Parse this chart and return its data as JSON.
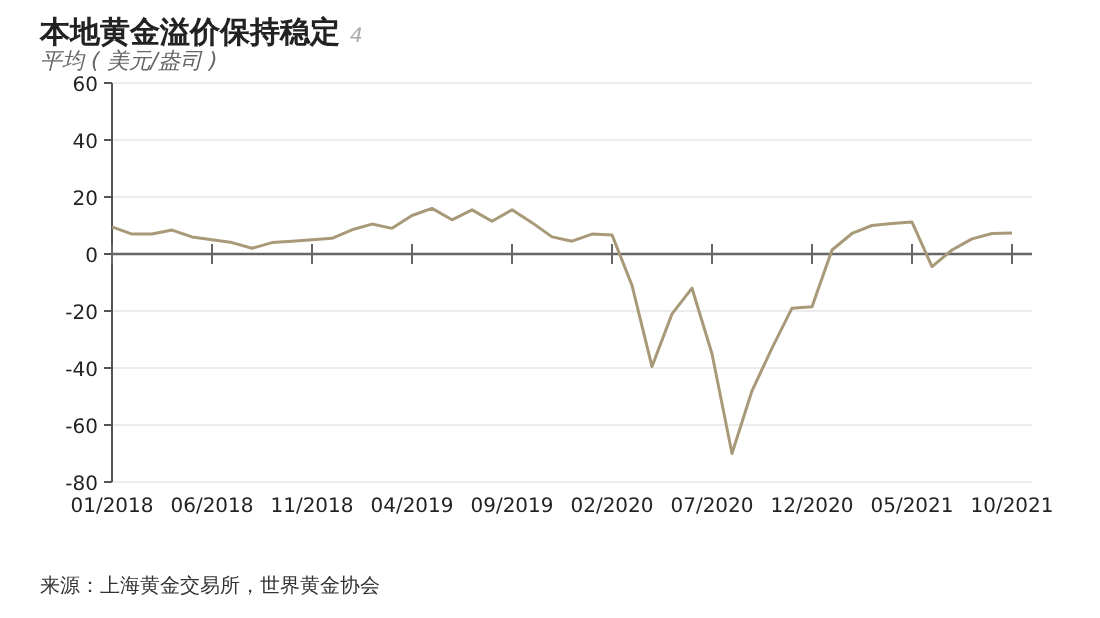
{
  "chart_data": {
    "type": "line",
    "title": "本地黄金溢价保持稳定",
    "subtitle": "平均 ( 美元/盎司 )",
    "annotations": [
      "4",
      "来源：上海黄金交易所，世界黄金协会"
    ],
    "x": [
      "2018-01",
      "2018-02",
      "2018-03",
      "2018-04",
      "2018-05",
      "2018-06",
      "2018-07",
      "2018-08",
      "2018-09",
      "2018-10",
      "2018-11",
      "2018-12",
      "2019-01",
      "2019-02",
      "2019-03",
      "2019-04",
      "2019-05",
      "2019-06",
      "2019-07",
      "2019-08",
      "2019-09",
      "2019-10",
      "2019-11",
      "2019-12",
      "2020-01",
      "2020-02",
      "2020-03",
      "2020-04",
      "2020-05",
      "2020-06",
      "2020-07",
      "2020-08",
      "2020-09",
      "2020-10",
      "2020-11",
      "2020-12",
      "2021-01",
      "2021-02",
      "2021-03",
      "2021-04",
      "2021-05",
      "2021-06",
      "2021-07",
      "2021-08",
      "2021-09",
      "2021-10"
    ],
    "series": [
      {
        "color": "#a89a78",
        "values": [
          9.5,
          7,
          7,
          8.4,
          6,
          5,
          4,
          2,
          4,
          4.5,
          5,
          5.5,
          8.5,
          10.5,
          9,
          13.5,
          16,
          12,
          15.5,
          11.5,
          15.5,
          11,
          6,
          4.5,
          7,
          6.7,
          -11,
          -39.5,
          -21,
          -12,
          -35,
          -70,
          -48,
          -33,
          -19,
          -18.5,
          1.4,
          7.2,
          10,
          10.7,
          11.2,
          -4.4,
          1.4,
          5.3,
          7.2,
          7.4
        ]
      }
    ],
    "xlim": [
      "2018-01",
      "2021-11"
    ],
    "xticks": [
      {
        "value": "2018-01",
        "label": "01/2018"
      },
      {
        "value": "2018-06",
        "label": "06/2018"
      },
      {
        "value": "2018-11",
        "label": "11/2018"
      },
      {
        "value": "2019-04",
        "label": "04/2019"
      },
      {
        "value": "2019-09",
        "label": "09/2019"
      },
      {
        "value": "2020-02",
        "label": "02/2020"
      },
      {
        "value": "2020-07",
        "label": "07/2020"
      },
      {
        "value": "2020-12",
        "label": "12/2020"
      },
      {
        "value": "2021-05",
        "label": "05/2021"
      },
      {
        "value": "2021-10",
        "label": "10/2021"
      }
    ],
    "ylim": [
      -80,
      60
    ],
    "yticks": [
      -80,
      -60,
      -40,
      -20,
      0,
      20,
      40,
      60
    ],
    "grid": "y",
    "line_style": "solid",
    "marker": "none"
  }
}
